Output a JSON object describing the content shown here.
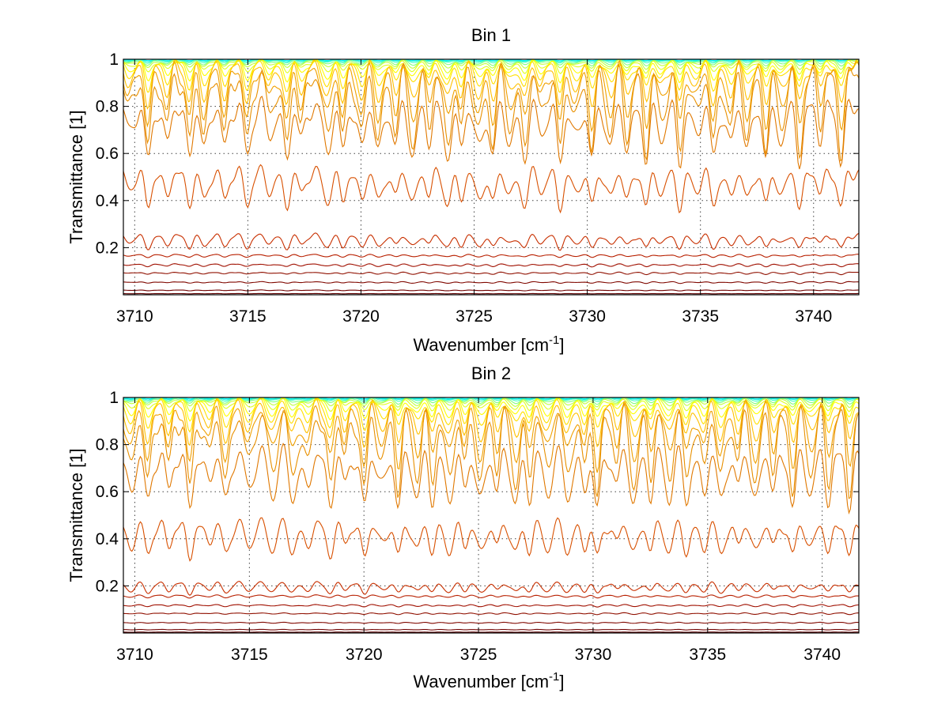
{
  "chart_data": [
    {
      "type": "line",
      "title": "Bin 1",
      "xlabel": "Wavenumber [cm",
      "xlabel_sup": "-1",
      "xlabel_end": "]",
      "ylabel": "Transmittance [1]",
      "xlim": [
        3709.5,
        3742
      ],
      "ylim": [
        0,
        1
      ],
      "xticks": [
        3710,
        3715,
        3720,
        3725,
        3730,
        3735,
        3740
      ],
      "xtick_labels": [
        "3710",
        "3715",
        "3720",
        "3725",
        "3730",
        "3735",
        "3740"
      ],
      "yticks": [
        0.2,
        0.4,
        0.6,
        0.8,
        1
      ],
      "ytick_labels": [
        "0.2",
        "0.4",
        "0.6",
        "0.8",
        "1"
      ],
      "grid": true,
      "absorption_lines": [
        3709.8,
        3710.6,
        3711.4,
        3712.4,
        3713.1,
        3714.0,
        3715.0,
        3716.0,
        3716.7,
        3717.4,
        3718.5,
        3719.2,
        3720.0,
        3720.8,
        3721.5,
        3722.3,
        3723.0,
        3723.8,
        3724.4,
        3725.2,
        3725.8,
        3726.6,
        3727.2,
        3728.0,
        3728.8,
        3729.5,
        3730.2,
        3731.0,
        3731.8,
        3732.6,
        3733.3,
        3734.1,
        3734.8,
        3735.6,
        3736.3,
        3737.1,
        3737.9,
        3738.6,
        3739.4,
        3740.3,
        3741.2
      ],
      "series": [
        {
          "baseline": 0.999,
          "depth": 0.004,
          "color": "#00FFFF"
        },
        {
          "baseline": 0.998,
          "depth": 0.007,
          "color": "#20F0E0"
        },
        {
          "baseline": 0.997,
          "depth": 0.012,
          "color": "#40FFC0"
        },
        {
          "baseline": 0.995,
          "depth": 0.02,
          "color": "#80FF80"
        },
        {
          "baseline": 0.993,
          "depth": 0.03,
          "color": "#C0FF40"
        },
        {
          "baseline": 0.99,
          "depth": 0.045,
          "color": "#E0FF20"
        },
        {
          "baseline": 0.986,
          "depth": 0.07,
          "color": "#FFFF00"
        },
        {
          "baseline": 0.98,
          "depth": 0.1,
          "color": "#FFE000"
        },
        {
          "baseline": 0.97,
          "depth": 0.15,
          "color": "#FFC000"
        },
        {
          "baseline": 0.955,
          "depth": 0.22,
          "color": "#F0A000"
        },
        {
          "baseline": 0.93,
          "depth": 0.3,
          "color": "#E89000"
        },
        {
          "baseline": 0.8,
          "depth": 0.22,
          "color": "#E07800"
        },
        {
          "baseline": 0.52,
          "depth": 0.14,
          "color": "#D85000"
        },
        {
          "baseline": 0.25,
          "depth": 0.05,
          "color": "#C83000"
        },
        {
          "baseline": 0.17,
          "depth": 0.01,
          "color": "#B82000"
        },
        {
          "baseline": 0.13,
          "depth": 0.01,
          "color": "#A01000"
        },
        {
          "baseline": 0.095,
          "depth": 0.008,
          "color": "#901000"
        },
        {
          "baseline": 0.055,
          "depth": 0.006,
          "color": "#800800"
        },
        {
          "baseline": 0.02,
          "depth": 0.003,
          "color": "#700000"
        },
        {
          "baseline": 0.005,
          "depth": 0.001,
          "color": "#600000"
        }
      ]
    },
    {
      "type": "line",
      "title": "Bin 2",
      "xlabel": "Wavenumber [cm",
      "xlabel_sup": "-1",
      "xlabel_end": "]",
      "ylabel": "Transmittance [1]",
      "xlim": [
        3709.5,
        3741.6
      ],
      "ylim": [
        0,
        1
      ],
      "xticks": [
        3710,
        3715,
        3720,
        3725,
        3730,
        3735,
        3740
      ],
      "xtick_labels": [
        "3710",
        "3715",
        "3720",
        "3725",
        "3730",
        "3735",
        "3740"
      ],
      "yticks": [
        0.2,
        0.4,
        0.6,
        0.8,
        1
      ],
      "ytick_labels": [
        "0.2",
        "0.4",
        "0.6",
        "0.8",
        "1"
      ],
      "grid": true,
      "absorption_lines": [
        3709.8,
        3710.6,
        3711.5,
        3712.4,
        3713.2,
        3714.0,
        3715.0,
        3716.0,
        3716.9,
        3717.5,
        3718.5,
        3719.2,
        3720.0,
        3720.8,
        3721.5,
        3722.3,
        3723.0,
        3723.7,
        3724.4,
        3725.1,
        3725.8,
        3726.6,
        3727.2,
        3728.0,
        3728.9,
        3729.6,
        3730.2,
        3731.0,
        3731.8,
        3732.5,
        3733.3,
        3734.1,
        3734.8,
        3735.6,
        3736.3,
        3737.1,
        3737.9,
        3738.7,
        3739.5,
        3740.3,
        3741.2
      ],
      "series": [
        {
          "baseline": 0.999,
          "depth": 0.004,
          "color": "#00FFFF"
        },
        {
          "baseline": 0.998,
          "depth": 0.007,
          "color": "#20F0E0"
        },
        {
          "baseline": 0.997,
          "depth": 0.012,
          "color": "#40FFC0"
        },
        {
          "baseline": 0.995,
          "depth": 0.02,
          "color": "#80FF80"
        },
        {
          "baseline": 0.993,
          "depth": 0.03,
          "color": "#C0FF40"
        },
        {
          "baseline": 0.99,
          "depth": 0.045,
          "color": "#E0FF20"
        },
        {
          "baseline": 0.985,
          "depth": 0.07,
          "color": "#FFFF00"
        },
        {
          "baseline": 0.978,
          "depth": 0.1,
          "color": "#FFE000"
        },
        {
          "baseline": 0.968,
          "depth": 0.15,
          "color": "#FFC000"
        },
        {
          "baseline": 0.95,
          "depth": 0.22,
          "color": "#F0A000"
        },
        {
          "baseline": 0.92,
          "depth": 0.3,
          "color": "#E89000"
        },
        {
          "baseline": 0.76,
          "depth": 0.22,
          "color": "#E07800"
        },
        {
          "baseline": 0.46,
          "depth": 0.13,
          "color": "#D85000"
        },
        {
          "baseline": 0.21,
          "depth": 0.04,
          "color": "#C83000"
        },
        {
          "baseline": 0.16,
          "depth": 0.01,
          "color": "#B82000"
        },
        {
          "baseline": 0.12,
          "depth": 0.008,
          "color": "#A01000"
        },
        {
          "baseline": 0.085,
          "depth": 0.006,
          "color": "#901000"
        },
        {
          "baseline": 0.045,
          "depth": 0.004,
          "color": "#800800"
        },
        {
          "baseline": 0.015,
          "depth": 0.002,
          "color": "#700000"
        },
        {
          "baseline": 0.004,
          "depth": 0.001,
          "color": "#600000"
        }
      ]
    }
  ]
}
